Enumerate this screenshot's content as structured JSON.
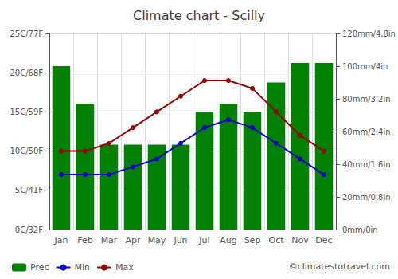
{
  "chart_data": {
    "type": "bar",
    "title": "Climate chart - Scilly",
    "categories": [
      "Jan",
      "Feb",
      "Mar",
      "Apr",
      "May",
      "Jun",
      "Jul",
      "Aug",
      "Sep",
      "Oct",
      "Nov",
      "Dec"
    ],
    "series": [
      {
        "name": "Prec",
        "type": "bar",
        "axis": "y2",
        "color": "#008000",
        "values": [
          100,
          77,
          52,
          52,
          52,
          52,
          72,
          77,
          72,
          90,
          102,
          102
        ]
      },
      {
        "name": "Min",
        "type": "line",
        "color": "#0000cc",
        "marker": "circle",
        "values": [
          7,
          7,
          7,
          8,
          9,
          11,
          13,
          14,
          13,
          11,
          9,
          7
        ]
      },
      {
        "name": "Max",
        "type": "line",
        "color": "#990000",
        "marker": "circle",
        "values": [
          10,
          10,
          11,
          13,
          15,
          17,
          19,
          19,
          18,
          15,
          12,
          10
        ]
      }
    ],
    "ylim": [
      0,
      25
    ],
    "yticks": [
      {
        "value": 0,
        "label": "0C/32F"
      },
      {
        "value": 5,
        "label": "5C/41F"
      },
      {
        "value": 10,
        "label": "10C/50F"
      },
      {
        "value": 15,
        "label": "15C/59F"
      },
      {
        "value": 20,
        "label": "20C/68F"
      },
      {
        "value": 25,
        "label": "25C/77F"
      }
    ],
    "y2lim": [
      0,
      120
    ],
    "y2ticks": [
      {
        "value": 0,
        "label": "0mm/0in"
      },
      {
        "value": 20,
        "label": "20mm/0.8in"
      },
      {
        "value": 40,
        "label": "40mm/1.6in"
      },
      {
        "value": 60,
        "label": "60mm/2.4in"
      },
      {
        "value": 80,
        "label": "80mm/3.2in"
      },
      {
        "value": 100,
        "label": "100mm/4in"
      },
      {
        "value": 120,
        "label": "120mm/4.8in"
      }
    ],
    "grid": true,
    "legend": "lower left",
    "annotation": "©climatestotravel.com"
  }
}
